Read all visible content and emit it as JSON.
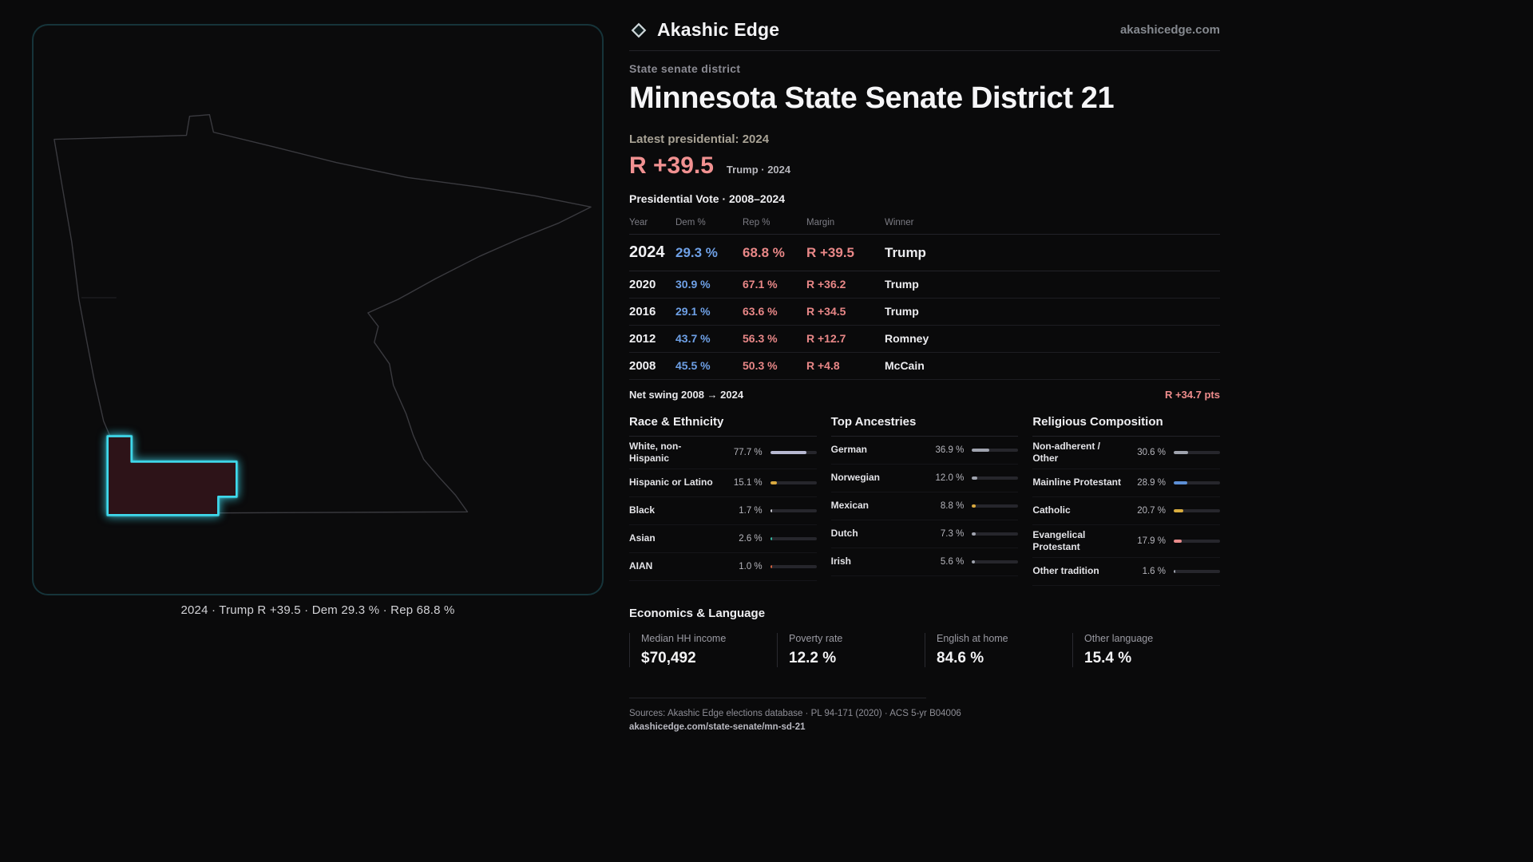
{
  "header": {
    "brand": "Akashic Edge",
    "domain": "akashicedge.com"
  },
  "hero": {
    "kicker": "State senate district",
    "title": "Minnesota State Senate District 21",
    "latest_label": "Latest presidential: 2024",
    "margin_value": "R +39.5",
    "margin_detail": "Trump · 2024"
  },
  "map": {
    "caption": "2024 · Trump R +39.5 · Dem 29.3 % · Rep 68.8 %",
    "district_color": "#3fd9ec"
  },
  "colors": {
    "dem_blue": "#6ea0e6",
    "rep_red": "#e88787",
    "accent_cyan": "#3fd9ec"
  },
  "election": {
    "section_title": "Presidential Vote · 2008–2024",
    "columns": [
      "Year",
      "Dem %",
      "Rep %",
      "Margin",
      "Winner"
    ],
    "rows": [
      {
        "year": "2024",
        "dem": "29.3 %",
        "rep": "68.8 %",
        "margin": "R +39.5",
        "winner": "Trump",
        "emphasis": true
      },
      {
        "year": "2020",
        "dem": "30.9 %",
        "rep": "67.1 %",
        "margin": "R +36.2",
        "winner": "Trump",
        "emphasis": false
      },
      {
        "year": "2016",
        "dem": "29.1 %",
        "rep": "63.6 %",
        "margin": "R +34.5",
        "winner": "Trump",
        "emphasis": false
      },
      {
        "year": "2012",
        "dem": "43.7 %",
        "rep": "56.3 %",
        "margin": "R +12.7",
        "winner": "Romney",
        "emphasis": false
      },
      {
        "year": "2008",
        "dem": "45.5 %",
        "rep": "50.3 %",
        "margin": "R +4.8",
        "winner": "McCain",
        "emphasis": false
      }
    ],
    "net_swing_label": "Net swing 2008 → 2024",
    "net_swing_value": "R +34.7 pts"
  },
  "demographics": {
    "columns": [
      {
        "title": "Race & Ethnicity",
        "items": [
          {
            "label": "White, non-Hispanic",
            "value": "77.7 %",
            "pct": 77.7,
            "color": "#b7b9d2"
          },
          {
            "label": "Hispanic or Latino",
            "value": "15.1 %",
            "pct": 15.1,
            "color": "#d9a93f"
          },
          {
            "label": "Black",
            "value": "1.7 %",
            "pct": 1.7,
            "color": "#c9c9d0"
          },
          {
            "label": "Asian",
            "value": "2.6 %",
            "pct": 2.6,
            "color": "#35b8a0"
          },
          {
            "label": "AIAN",
            "value": "1.0 %",
            "pct": 1.0,
            "color": "#d1603d"
          }
        ]
      },
      {
        "title": "Top Ancestries",
        "items": [
          {
            "label": "German",
            "value": "36.9 %",
            "pct": 36.9,
            "color": "#9fa3ae"
          },
          {
            "label": "Norwegian",
            "value": "12.0 %",
            "pct": 12.0,
            "color": "#9fa3ae"
          },
          {
            "label": "Mexican",
            "value": "8.8 %",
            "pct": 8.8,
            "color": "#d9a93f"
          },
          {
            "label": "Dutch",
            "value": "7.3 %",
            "pct": 7.3,
            "color": "#9fa3ae"
          },
          {
            "label": "Irish",
            "value": "5.6 %",
            "pct": 5.6,
            "color": "#9fa3ae"
          }
        ]
      },
      {
        "title": "Religious Composition",
        "items": [
          {
            "label": "Non-adherent / Other",
            "value": "30.6 %",
            "pct": 30.6,
            "color": "#9fa3ae"
          },
          {
            "label": "Mainline Protestant",
            "value": "28.9 %",
            "pct": 28.9,
            "color": "#5d8fd6"
          },
          {
            "label": "Catholic",
            "value": "20.7 %",
            "pct": 20.7,
            "color": "#d9ad3f"
          },
          {
            "label": "Evangelical Protestant",
            "value": "17.9 %",
            "pct": 17.9,
            "color": "#e88b8b"
          },
          {
            "label": "Other tradition",
            "value": "1.6 %",
            "pct": 1.6,
            "color": "#9fa3ae"
          }
        ]
      }
    ]
  },
  "economics": {
    "title": "Economics & Language",
    "stats": [
      {
        "label": "Median HH income",
        "value": "$70,492"
      },
      {
        "label": "Poverty rate",
        "value": "12.2 %"
      },
      {
        "label": "English at home",
        "value": "84.6 %"
      },
      {
        "label": "Other language",
        "value": "15.4 %"
      }
    ]
  },
  "footer": {
    "sources": "Sources: Akashic Edge elections database · PL 94-171 (2020) · ACS 5-yr B04006",
    "link": "akashicedge.com/state-senate/mn-sd-21"
  }
}
